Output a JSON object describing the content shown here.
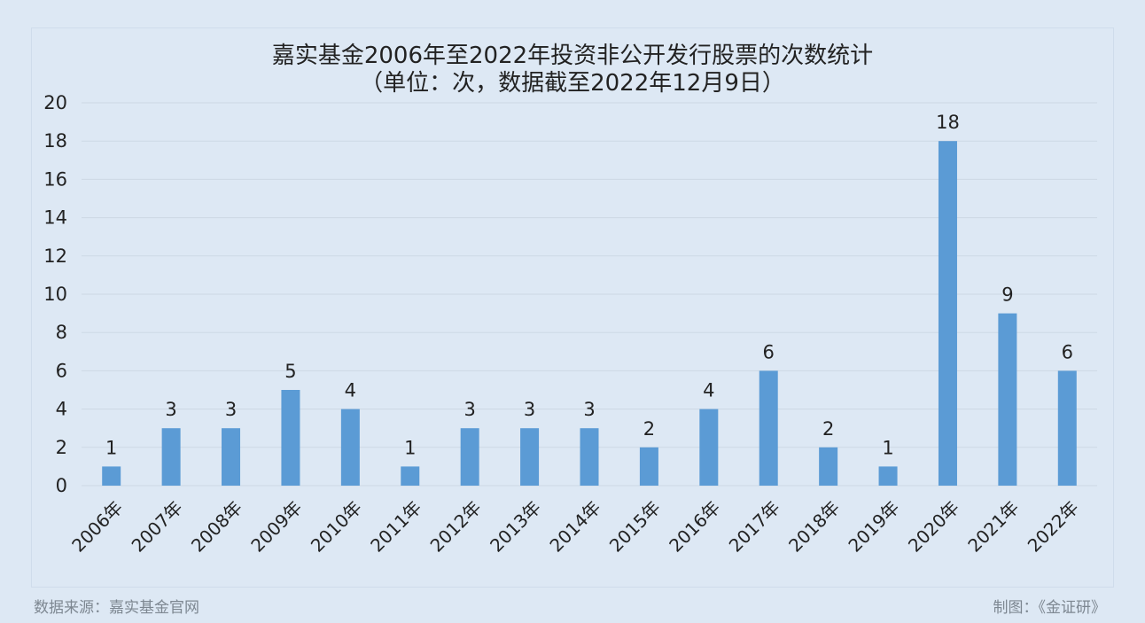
{
  "chart_data": {
    "type": "bar",
    "title": "嘉实基金2006年至2022年投资非公开发行股票的次数统计",
    "subtitle": "（单位：次，数据截至2022年12月9日）",
    "categories": [
      "2006年",
      "2007年",
      "2008年",
      "2009年",
      "2010年",
      "2011年",
      "2012年",
      "2013年",
      "2014年",
      "2015年",
      "2016年",
      "2017年",
      "2018年",
      "2019年",
      "2020年",
      "2021年",
      "2022年"
    ],
    "values": [
      1,
      3,
      3,
      5,
      4,
      1,
      3,
      3,
      3,
      2,
      4,
      6,
      2,
      1,
      18,
      9,
      6
    ],
    "ylim": [
      0,
      20
    ],
    "yticks": [
      0,
      2,
      4,
      6,
      8,
      10,
      12,
      14,
      16,
      18,
      20
    ],
    "grid": true,
    "data_labels": true,
    "legend": "none",
    "bar_color": "#5b9bd5"
  },
  "footer": {
    "source": "数据来源：嘉实基金官网",
    "maker": "制图：《金证研》"
  },
  "colors": {
    "background": "#dde8f4",
    "gridline": "#cdd9e5",
    "text": "#222222",
    "footer_text": "#7d8791"
  }
}
